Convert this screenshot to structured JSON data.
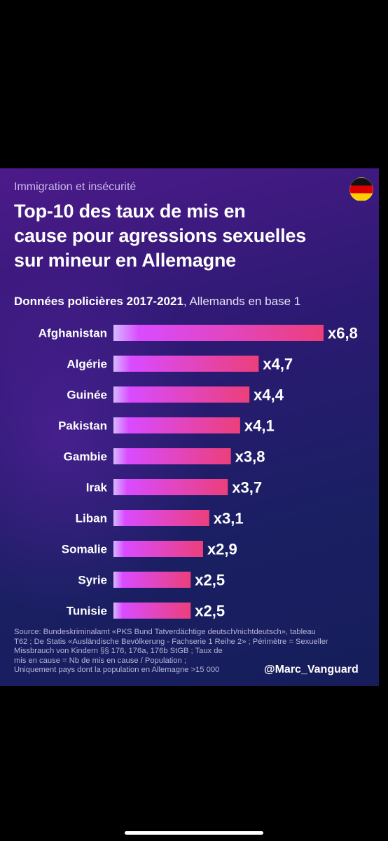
{
  "header": {
    "kicker": "Immigration et insécurité",
    "title_lines": [
      "Top-10 des taux de mis en",
      "cause pour agressions sexuelles",
      "sur mineur en Allemagne"
    ],
    "flag_icon": "germany-flag-icon",
    "flag_colors": [
      "#000000",
      "#dd0000",
      "#ffce00"
    ]
  },
  "data_heading": {
    "bold": "Données policières 2017-2021",
    "rest": ", Allemands en base 1"
  },
  "chart_data": {
    "type": "bar",
    "orientation": "horizontal",
    "categories": [
      "Afghanistan",
      "Algérie",
      "Guinée",
      "Pakistan",
      "Gambie",
      "Irak",
      "Liban",
      "Somalie",
      "Syrie",
      "Tunisie"
    ],
    "values": [
      6.8,
      4.7,
      4.4,
      4.1,
      3.8,
      3.7,
      3.1,
      2.9,
      2.5,
      2.5
    ],
    "value_labels": [
      "x6,8",
      "x4,7",
      "x4,4",
      "x4,1",
      "x3,8",
      "x3,7",
      "x3,1",
      "x2,9",
      "x2,5",
      "x2,5"
    ],
    "bar_gradient": [
      "#d8b8ff",
      "#d94bff",
      "#ec3f7a"
    ]
  },
  "footnote": {
    "lines": [
      "Source: Bundeskriminalamt «PKS Bund Tatverdächtige deutsch/nichtdeutsch», tableau",
      "T62 ; De Statis «Ausländische Bevölkerung - Fachserie 1 Reihe 2» ; Périmètre = Sexueller",
      "Missbrauch von Kindern §§ 176, 176a, 176b StGB ; Taux de",
      "mis en cause = Nb de mis en cause / Population ;",
      "Uniquement pays dont la population en Allemagne >15 000"
    ]
  },
  "handle": "@Marc_Vanguard"
}
